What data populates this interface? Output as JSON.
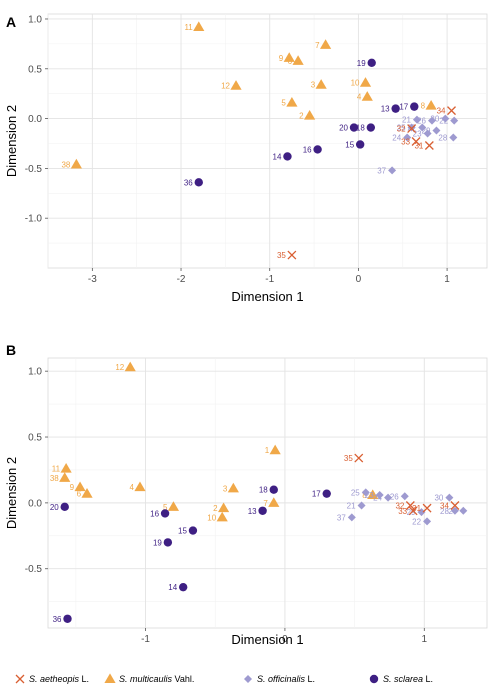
{
  "species_colors": {
    "S. aetheopis": "#d95f32",
    "S. multicaulis": "#f0a848",
    "S. officinalis": "#9e9ad0",
    "S. sclarea": "#3e1f83"
  },
  "legend": [
    {
      "species": "S. aetheopis",
      "name": "S. aetheopis",
      "author": " L.",
      "marker": "cross"
    },
    {
      "species": "S. multicaulis",
      "name": "S. multicaulis",
      "author": " Vahl.",
      "marker": "triangle"
    },
    {
      "species": "S. officinalis",
      "name": "S. officinalis",
      "author": " L.",
      "marker": "diamond"
    },
    {
      "species": "S. sclarea",
      "name": "S. sclarea",
      "author": " L.",
      "marker": "circle"
    }
  ],
  "chart_data": [
    {
      "type": "scatter",
      "panel": "A",
      "xlabel": "Dimension 1",
      "ylabel": "Dimension 2",
      "xlim": [
        -3.5,
        1.45
      ],
      "ylim": [
        -1.5,
        1.05
      ],
      "xticks": [
        -3,
        -2,
        -1,
        0,
        1
      ],
      "yticks": [
        -1.0,
        -0.5,
        0.0,
        0.5,
        1.0
      ],
      "xtick_labels": [
        "-3",
        "-2",
        "-1",
        "0",
        "1"
      ],
      "ytick_labels": [
        "-1.0",
        "-0.5",
        "0.0",
        "0.5",
        "1.0"
      ],
      "grid": true,
      "points": [
        {
          "label": "11",
          "species": "S. multicaulis",
          "x": -1.8,
          "y": 0.92
        },
        {
          "label": "38",
          "species": "S. multicaulis",
          "x": -3.18,
          "y": -0.46
        },
        {
          "label": "12",
          "species": "S. multicaulis",
          "x": -1.38,
          "y": 0.33
        },
        {
          "label": "9",
          "species": "S. multicaulis",
          "x": -0.78,
          "y": 0.61
        },
        {
          "label": "6",
          "species": "S. multicaulis",
          "x": -0.68,
          "y": 0.58
        },
        {
          "label": "7",
          "species": "S. multicaulis",
          "x": -0.37,
          "y": 0.74
        },
        {
          "label": "3",
          "species": "S. multicaulis",
          "x": -0.42,
          "y": 0.34
        },
        {
          "label": "5",
          "species": "S. multicaulis",
          "x": -0.75,
          "y": 0.16
        },
        {
          "label": "2",
          "species": "S. multicaulis",
          "x": -0.55,
          "y": 0.03
        },
        {
          "label": "10",
          "species": "S. multicaulis",
          "x": 0.08,
          "y": 0.36
        },
        {
          "label": "4",
          "species": "S. multicaulis",
          "x": 0.1,
          "y": 0.22
        },
        {
          "label": "8",
          "species": "S. multicaulis",
          "x": 0.82,
          "y": 0.13
        },
        {
          "label": "19",
          "species": "S. sclarea",
          "x": 0.15,
          "y": 0.56
        },
        {
          "label": "13",
          "species": "S. sclarea",
          "x": 0.42,
          "y": 0.1
        },
        {
          "label": "17",
          "species": "S. sclarea",
          "x": 0.63,
          "y": 0.12
        },
        {
          "label": "20",
          "species": "S. sclarea",
          "x": -0.05,
          "y": -0.09
        },
        {
          "label": "18",
          "species": "S. sclarea",
          "x": 0.14,
          "y": -0.09
        },
        {
          "label": "15",
          "species": "S. sclarea",
          "x": 0.02,
          "y": -0.26
        },
        {
          "label": "16",
          "species": "S. sclarea",
          "x": -0.46,
          "y": -0.31
        },
        {
          "label": "14",
          "species": "S. sclarea",
          "x": -0.8,
          "y": -0.38
        },
        {
          "label": "36",
          "species": "S. sclarea",
          "x": -1.8,
          "y": -0.64
        },
        {
          "label": "30",
          "species": "S. officinalis",
          "x": 0.98,
          "y": 0.0
        },
        {
          "label": "21",
          "species": "S. officinalis",
          "x": 0.66,
          "y": -0.01
        },
        {
          "label": "26",
          "species": "S. officinalis",
          "x": 0.83,
          "y": -0.02
        },
        {
          "label": "22",
          "species": "S. officinalis",
          "x": 1.08,
          "y": -0.02
        },
        {
          "label": "25",
          "species": "S. officinalis",
          "x": 0.6,
          "y": -0.09
        },
        {
          "label": "27",
          "species": "S. officinalis",
          "x": 0.72,
          "y": -0.09
        },
        {
          "label": "23",
          "species": "S. officinalis",
          "x": 0.78,
          "y": -0.15
        },
        {
          "label": "29",
          "species": "S. officinalis",
          "x": 0.88,
          "y": -0.12
        },
        {
          "label": "24",
          "species": "S. officinalis",
          "x": 0.55,
          "y": -0.19
        },
        {
          "label": "28",
          "species": "S. officinalis",
          "x": 1.07,
          "y": -0.19
        },
        {
          "label": "37",
          "species": "S. officinalis",
          "x": 0.38,
          "y": -0.52
        },
        {
          "label": "34",
          "species": "S. aetheopis",
          "x": 1.05,
          "y": 0.08
        },
        {
          "label": "32",
          "species": "S. aetheopis",
          "x": 0.6,
          "y": -0.1
        },
        {
          "label": "33",
          "species": "S. aetheopis",
          "x": 0.65,
          "y": -0.23
        },
        {
          "label": "31",
          "species": "S. aetheopis",
          "x": 0.8,
          "y": -0.27
        },
        {
          "label": "35",
          "species": "S. aetheopis",
          "x": -0.75,
          "y": -1.37
        }
      ]
    },
    {
      "type": "scatter",
      "panel": "B",
      "xlabel": "Dimension 1",
      "ylabel": "Dimension 2",
      "xlim": [
        -1.7,
        1.45
      ],
      "ylim": [
        -0.95,
        1.1
      ],
      "xticks": [
        -1,
        0,
        1
      ],
      "yticks": [
        -0.5,
        0.0,
        0.5,
        1.0
      ],
      "xtick_labels": [
        "-1",
        "0",
        "1"
      ],
      "ytick_labels": [
        "-0.5",
        "0.0",
        "0.5",
        "1.0"
      ],
      "grid": true,
      "points": [
        {
          "label": "12",
          "species": "S. multicaulis",
          "x": -1.11,
          "y": 1.03
        },
        {
          "label": "11",
          "species": "S. multicaulis",
          "x": -1.57,
          "y": 0.26
        },
        {
          "label": "38",
          "species": "S. multicaulis",
          "x": -1.58,
          "y": 0.19
        },
        {
          "label": "9",
          "species": "S. multicaulis",
          "x": -1.47,
          "y": 0.12
        },
        {
          "label": "6",
          "species": "S. multicaulis",
          "x": -1.42,
          "y": 0.07
        },
        {
          "label": "4",
          "species": "S. multicaulis",
          "x": -1.04,
          "y": 0.12
        },
        {
          "label": "5",
          "species": "S. multicaulis",
          "x": -0.8,
          "y": -0.03
        },
        {
          "label": "2",
          "species": "S. multicaulis",
          "x": -0.44,
          "y": -0.04
        },
        {
          "label": "10",
          "species": "S. multicaulis",
          "x": -0.45,
          "y": -0.11
        },
        {
          "label": "3",
          "species": "S. multicaulis",
          "x": -0.37,
          "y": 0.11
        },
        {
          "label": "1",
          "species": "S. multicaulis",
          "x": -0.07,
          "y": 0.4
        },
        {
          "label": "7",
          "species": "S. multicaulis",
          "x": -0.08,
          "y": 0.0
        },
        {
          "label": "8",
          "species": "S. multicaulis",
          "x": 0.63,
          "y": 0.06
        },
        {
          "label": "20",
          "species": "S. sclarea",
          "x": -1.58,
          "y": -0.03
        },
        {
          "label": "16",
          "species": "S. sclarea",
          "x": -0.86,
          "y": -0.08
        },
        {
          "label": "15",
          "species": "S. sclarea",
          "x": -0.66,
          "y": -0.21
        },
        {
          "label": "19",
          "species": "S. sclarea",
          "x": -0.84,
          "y": -0.3
        },
        {
          "label": "14",
          "species": "S. sclarea",
          "x": -0.73,
          "y": -0.64
        },
        {
          "label": "36",
          "species": "S. sclarea",
          "x": -1.56,
          "y": -0.88
        },
        {
          "label": "13",
          "species": "S. sclarea",
          "x": -0.16,
          "y": -0.06
        },
        {
          "label": "18",
          "species": "S. sclarea",
          "x": -0.08,
          "y": 0.1
        },
        {
          "label": "17",
          "species": "S. sclarea",
          "x": 0.3,
          "y": 0.07
        },
        {
          "label": "25",
          "species": "S. officinalis",
          "x": 0.58,
          "y": 0.08
        },
        {
          "label": "23",
          "species": "S. officinalis",
          "x": 0.68,
          "y": 0.06
        },
        {
          "label": "21",
          "species": "S. officinalis",
          "x": 0.55,
          "y": -0.02
        },
        {
          "label": "24",
          "species": "S. officinalis",
          "x": 0.74,
          "y": 0.04
        },
        {
          "label": "26",
          "species": "S. officinalis",
          "x": 0.86,
          "y": 0.05
        },
        {
          "label": "30",
          "species": "S. officinalis",
          "x": 1.18,
          "y": 0.04
        },
        {
          "label": "29",
          "species": "S. officinalis",
          "x": 0.98,
          "y": -0.07
        },
        {
          "label": "22",
          "species": "S. officinalis",
          "x": 1.02,
          "y": -0.14
        },
        {
          "label": "28",
          "species": "S. officinalis",
          "x": 1.22,
          "y": -0.06
        },
        {
          "label": "27",
          "species": "S. officinalis",
          "x": 1.28,
          "y": -0.06
        },
        {
          "label": "37",
          "species": "S. officinalis",
          "x": 0.48,
          "y": -0.11
        },
        {
          "label": "35",
          "species": "S. aetheopis",
          "x": 0.53,
          "y": 0.34
        },
        {
          "label": "32",
          "species": "S. aetheopis",
          "x": 0.9,
          "y": -0.02
        },
        {
          "label": "33",
          "species": "S. aetheopis",
          "x": 0.92,
          "y": -0.06
        },
        {
          "label": "31",
          "species": "S. aetheopis",
          "x": 1.02,
          "y": -0.04
        },
        {
          "label": "34",
          "species": "S. aetheopis",
          "x": 1.22,
          "y": -0.02
        }
      ]
    }
  ]
}
